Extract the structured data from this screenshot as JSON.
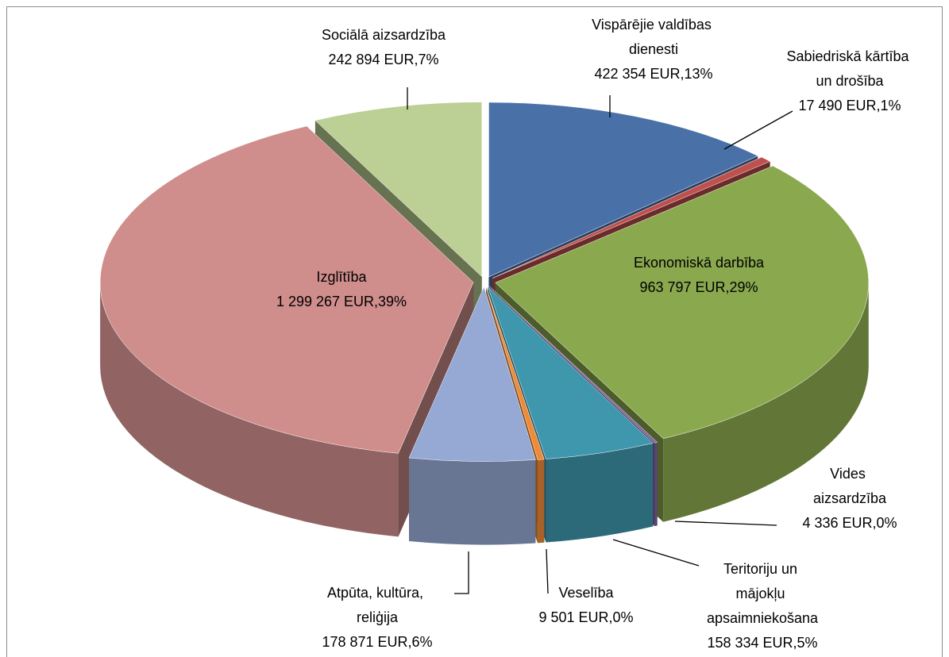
{
  "chart_data": {
    "type": "pie3d",
    "categories": [
      "Vispārējie valdības dienesti",
      "Sabiedriskā kārtība un drošība",
      "Ekonomiskā darbība",
      "Vides aizsardzība",
      "Teritoriju un mājokļu apsaimniekošana",
      "Veselība",
      "Atpūta, kultūra, reliģija",
      "Izglītība",
      "Sociālā aizsardzība"
    ],
    "values": [
      422354,
      17490,
      963797,
      4336,
      158334,
      9501,
      178871,
      1299267,
      242894
    ],
    "value_labels": [
      "422 354 EUR,13%",
      "17 490 EUR,1%",
      "963 797 EUR,29%",
      "4 336 EUR,0%",
      "158 334 EUR,5%",
      "9 501 EUR,0%",
      "178 871 EUR,6%",
      "1 299 267 EUR,39%",
      "242 894 EUR,7%"
    ],
    "colors": [
      "#4a70a8",
      "#c0504d",
      "#8aa84e",
      "#8064a2",
      "#3f97ad",
      "#f08a36",
      "#95a9d4",
      "#cf8e8c",
      "#bccf94"
    ]
  }
}
